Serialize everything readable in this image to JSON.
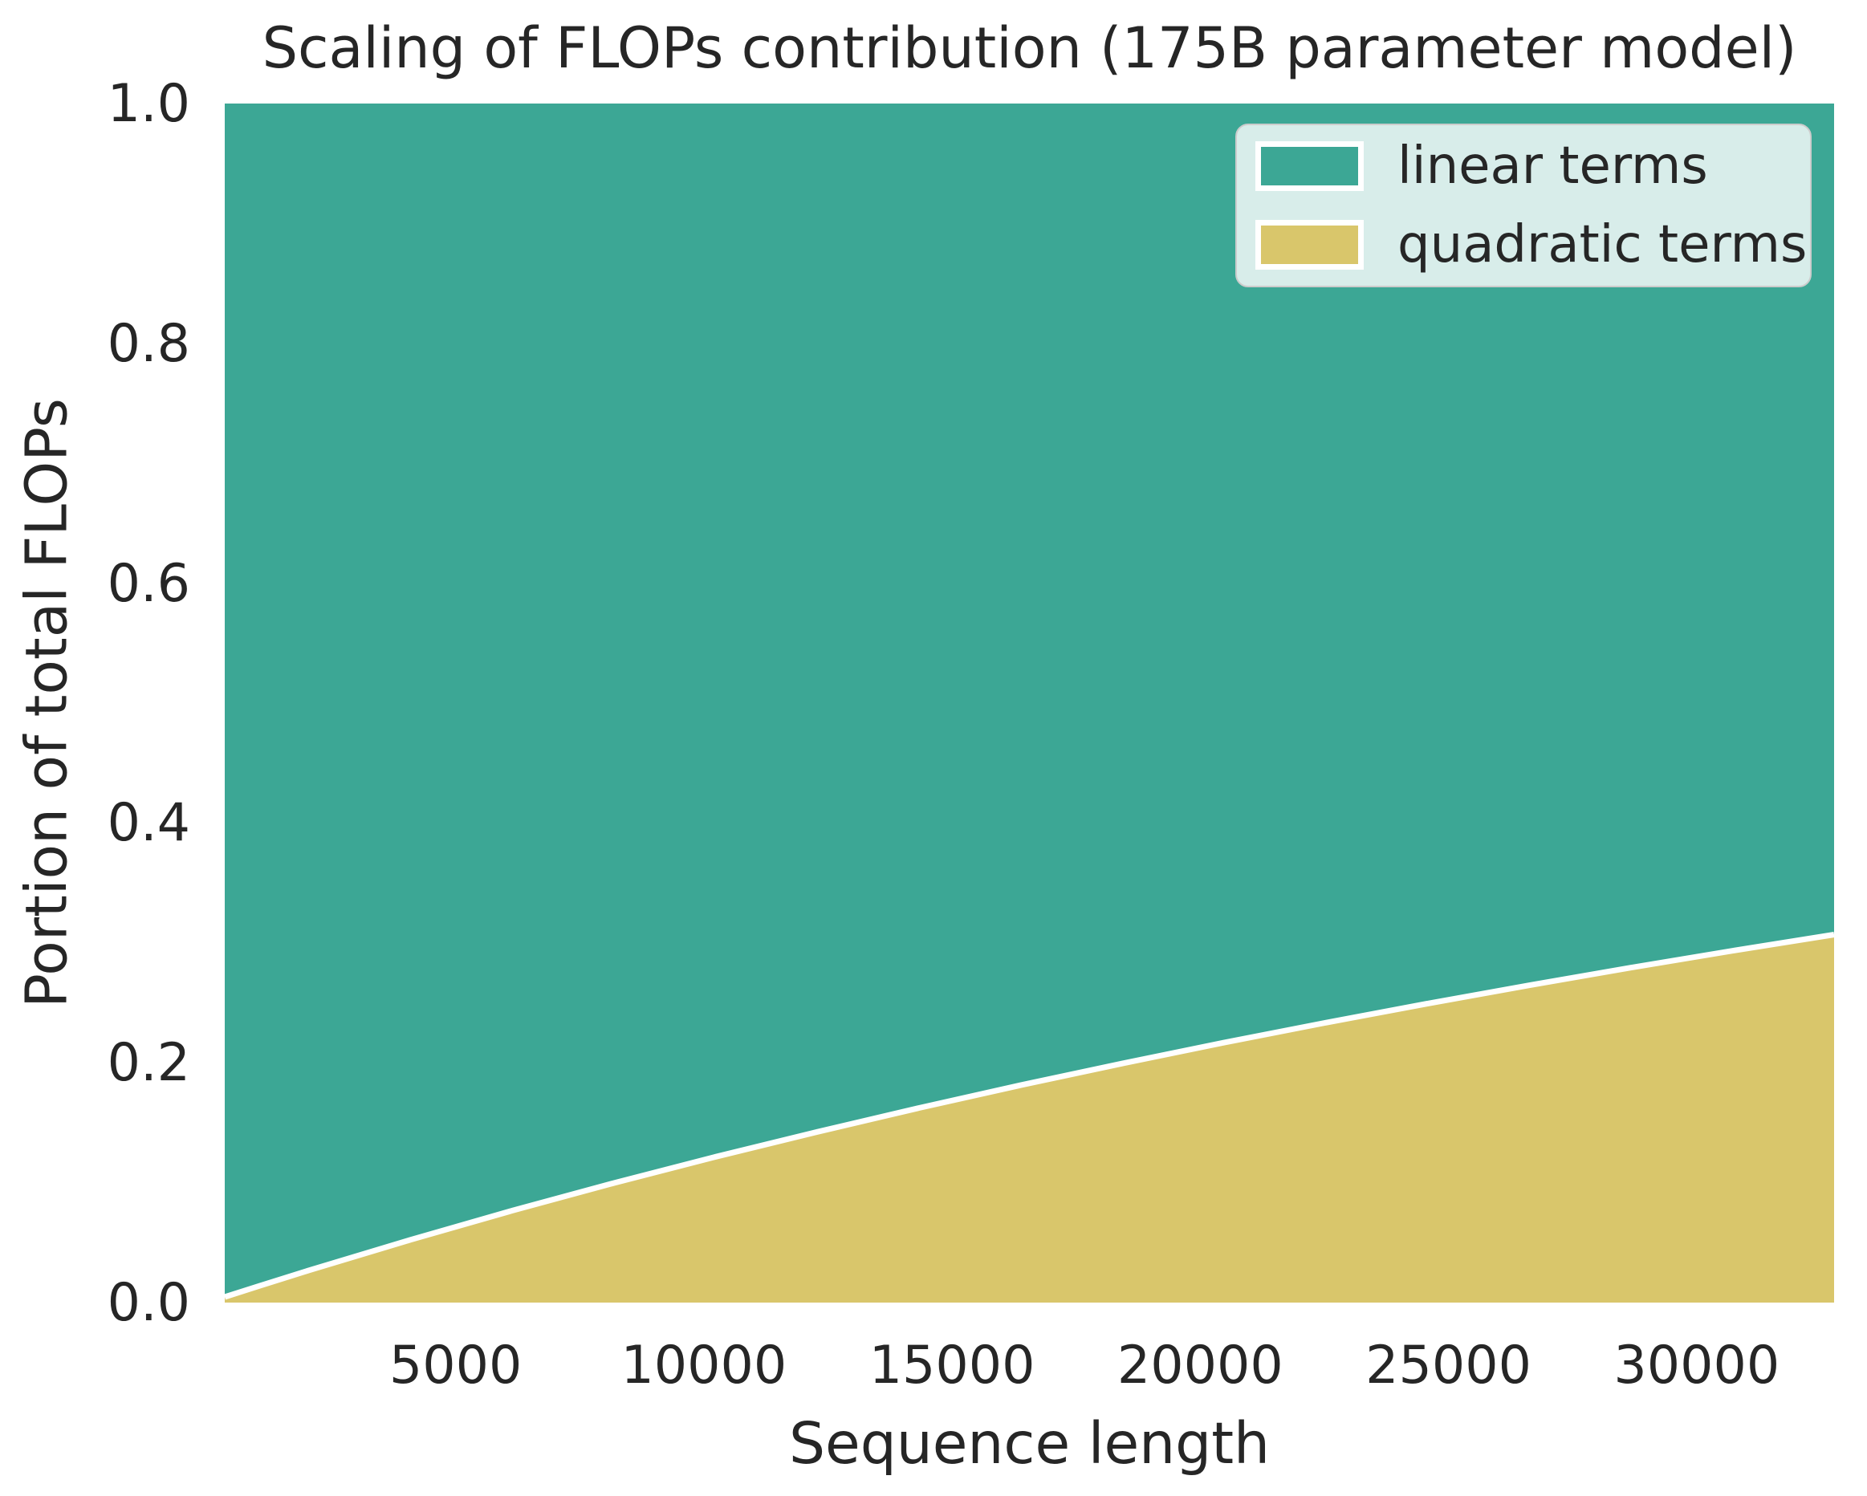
{
  "colors": {
    "background": "#ffffff",
    "text": "#262626",
    "linear_terms": "#3ca795",
    "quadratic_terms": "#d9c66b",
    "separator_line": "#ffffff",
    "legend_background": "rgba(255,255,255,0.8)",
    "legend_border": "#cccccc"
  },
  "chart_data": {
    "type": "area",
    "stacked": true,
    "title": "Scaling of FLOPs contribution (175B parameter model)",
    "xlabel": "Sequence length",
    "ylabel": "Portion of total FLOPs",
    "xlim": [
      350,
      32768
    ],
    "ylim": [
      0.0,
      1.0
    ],
    "grid": false,
    "x_ticks": [
      5000,
      10000,
      15000,
      20000,
      25000,
      30000
    ],
    "x_tick_labels": [
      "5000",
      "10000",
      "15000",
      "20000",
      "25000",
      "30000"
    ],
    "y_ticks": [
      0.0,
      0.2,
      0.4,
      0.6,
      0.8,
      1.0
    ],
    "y_tick_labels": [
      "0.0",
      "0.2",
      "0.4",
      "0.6",
      "0.8",
      "1.0"
    ],
    "legend": {
      "position": "upper right",
      "entries": [
        {
          "label": "linear terms",
          "color": "#3ca795"
        },
        {
          "label": "quadratic terms",
          "color": "#d9c66b"
        }
      ]
    },
    "x": [
      350,
      1024,
      2048,
      4096,
      6144,
      8192,
      10240,
      12288,
      14336,
      16384,
      18432,
      20480,
      22528,
      24576,
      26624,
      28672,
      30720,
      32768
    ],
    "series": [
      {
        "name": "linear terms",
        "color": "#3ca795",
        "stack": "top",
        "values": [
          0.9953,
          0.9864,
          0.9731,
          0.9476,
          0.9233,
          0.9003,
          0.8784,
          0.8576,
          0.8377,
          0.8187,
          0.8006,
          0.7832,
          0.7666,
          0.7507,
          0.7354,
          0.7207,
          0.7066,
          0.6931
        ]
      },
      {
        "name": "quadratic terms",
        "color": "#d9c66b",
        "stack": "bottom",
        "values": [
          0.0047,
          0.0136,
          0.0269,
          0.0524,
          0.0767,
          0.0997,
          0.1216,
          0.1424,
          0.1623,
          0.1813,
          0.1994,
          0.2168,
          0.2334,
          0.2493,
          0.2646,
          0.2793,
          0.2934,
          0.3069
        ]
      }
    ],
    "separator": {
      "color": "#ffffff",
      "width": 7
    }
  }
}
